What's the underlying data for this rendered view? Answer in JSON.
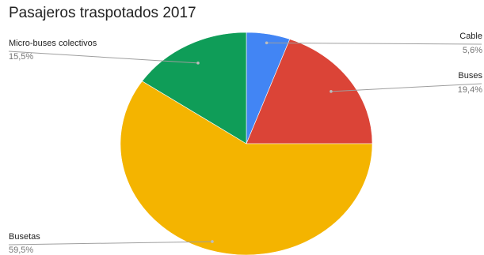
{
  "chart_data": {
    "type": "pie",
    "title": "Pasajeros traspotados 2017",
    "slices": [
      {
        "name": "Cable",
        "value": 5.6,
        "label": "5,6%",
        "color": "#4285F4"
      },
      {
        "name": "Buses",
        "value": 19.4,
        "label": "19,4%",
        "color": "#DB4437"
      },
      {
        "name": "Busetas",
        "value": 59.5,
        "label": "59,5%",
        "color": "#F4B400"
      },
      {
        "name": "Micro-buses colectivos",
        "value": 15.5,
        "label": "15,5%",
        "color": "#0F9D58"
      }
    ],
    "legend": "labeled-leader-lines"
  }
}
